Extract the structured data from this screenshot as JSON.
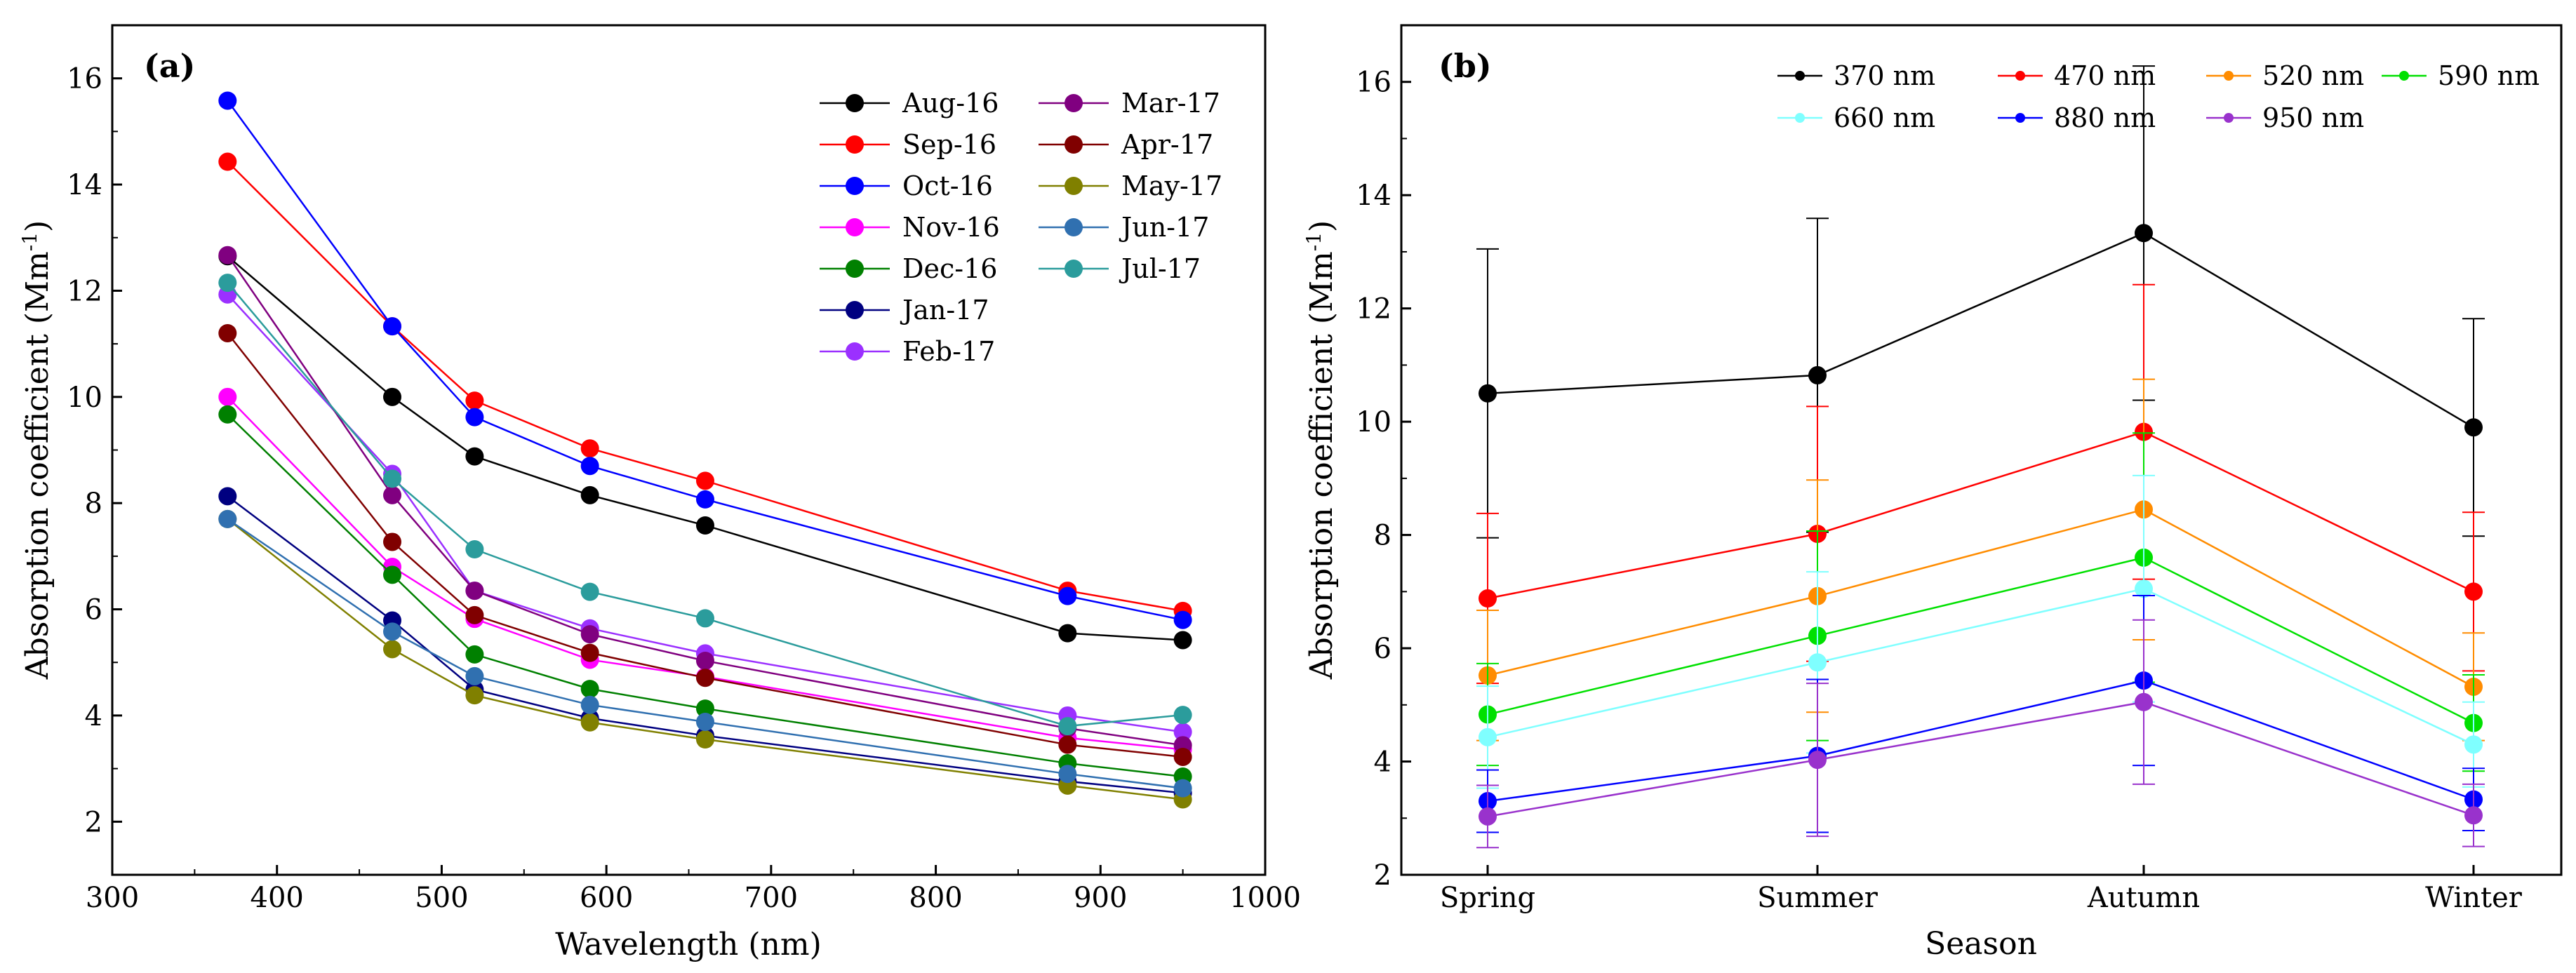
{
  "chart_data": [
    {
      "type": "line",
      "panel_label": "(a)",
      "xlabel": "Wavelength (nm)",
      "ylabel_main": "Absorption coefficient (Mm",
      "ylabel_sup": "-1",
      "ylabel_close": ")",
      "xlim": [
        300,
        1000
      ],
      "ylim": [
        1,
        17
      ],
      "x_ticks": [
        "300",
        "400",
        "500",
        "600",
        "700",
        "800",
        "900",
        "1000"
      ],
      "y_ticks": [
        "2",
        "4",
        "6",
        "8",
        "10",
        "12",
        "14",
        "16"
      ],
      "legend_position": "top-right",
      "x": [
        370,
        470,
        520,
        590,
        660,
        880,
        950
      ],
      "series": [
        {
          "name": "Aug-16",
          "color": "#000000",
          "values": [
            12.65,
            10.0,
            8.88,
            8.15,
            7.58,
            5.55,
            5.42
          ]
        },
        {
          "name": "Sep-16",
          "color": "#ff0000",
          "values": [
            14.43,
            11.33,
            9.93,
            9.03,
            8.42,
            6.35,
            5.97
          ]
        },
        {
          "name": "Oct-16",
          "color": "#0000ff",
          "values": [
            15.58,
            11.33,
            9.62,
            8.7,
            8.07,
            6.25,
            5.8
          ]
        },
        {
          "name": "Nov-16",
          "color": "#ff00ff",
          "values": [
            10.0,
            6.8,
            5.82,
            5.05,
            4.73,
            3.58,
            3.36
          ]
        },
        {
          "name": "Dec-16",
          "color": "#008000",
          "values": [
            9.67,
            6.65,
            5.15,
            4.5,
            4.13,
            3.1,
            2.85
          ]
        },
        {
          "name": "Jan-17",
          "color": "#000080",
          "values": [
            8.13,
            5.79,
            4.49,
            3.95,
            3.62,
            2.76,
            2.54
          ]
        },
        {
          "name": "Feb-17",
          "color": "#9b30ff",
          "values": [
            11.93,
            8.55,
            6.35,
            5.64,
            5.17,
            4.0,
            3.69
          ]
        },
        {
          "name": "Mar-17",
          "color": "#800080",
          "values": [
            12.67,
            8.15,
            6.35,
            5.53,
            5.03,
            3.76,
            3.44
          ]
        },
        {
          "name": "Apr-17",
          "color": "#800000",
          "values": [
            11.2,
            7.27,
            5.89,
            5.18,
            4.71,
            3.45,
            3.22
          ]
        },
        {
          "name": "May-17",
          "color": "#808000",
          "values": [
            7.7,
            5.25,
            4.38,
            3.87,
            3.55,
            2.68,
            2.42
          ]
        },
        {
          "name": "Jun-17",
          "color": "#3070b0",
          "values": [
            7.7,
            5.58,
            4.74,
            4.2,
            3.88,
            2.9,
            2.63
          ]
        },
        {
          "name": "Jul-17",
          "color": "#2b9c9c",
          "values": [
            12.15,
            8.46,
            7.13,
            6.33,
            5.83,
            3.8,
            4.01
          ]
        }
      ]
    },
    {
      "type": "line",
      "panel_label": "(b)",
      "xlabel": "Season",
      "ylabel_main": "Absorption coefficient (Mm",
      "ylabel_sup": "-1",
      "ylabel_close": ")",
      "ylim": [
        2,
        17
      ],
      "categories": [
        "Spring",
        "Summer",
        "Autumn",
        "Winter"
      ],
      "y_ticks": [
        "2",
        "4",
        "6",
        "8",
        "10",
        "12",
        "14",
        "16"
      ],
      "legend_position": "top",
      "error_bars": "symmetric, one standard deviation",
      "series": [
        {
          "name": "370 nm",
          "color": "#000000",
          "values": [
            10.5,
            10.82,
            13.33,
            9.9
          ],
          "errors": [
            2.55,
            2.77,
            2.95,
            1.92
          ]
        },
        {
          "name": "470 nm",
          "color": "#ff0000",
          "values": [
            6.88,
            8.02,
            9.82,
            7.0
          ],
          "errors": [
            1.5,
            2.25,
            2.6,
            1.4
          ]
        },
        {
          "name": "520 nm",
          "color": "#ff8c00",
          "values": [
            5.52,
            6.92,
            8.45,
            5.32
          ],
          "errors": [
            1.15,
            2.05,
            2.3,
            0.95
          ]
        },
        {
          "name": "590 nm",
          "color": "#00e000",
          "values": [
            4.83,
            6.22,
            7.6,
            4.68
          ],
          "errors": [
            0.9,
            1.85,
            2.2,
            0.85
          ]
        },
        {
          "name": "660 nm",
          "color": "#7fffff",
          "values": [
            4.43,
            5.75,
            7.05,
            4.3
          ],
          "errors": [
            0.9,
            1.6,
            2.0,
            0.75
          ]
        },
        {
          "name": "880 nm",
          "color": "#0000ff",
          "values": [
            3.3,
            4.1,
            5.43,
            3.33
          ],
          "errors": [
            0.55,
            1.35,
            1.5,
            0.55
          ]
        },
        {
          "name": "950 nm",
          "color": "#9932cc",
          "values": [
            3.03,
            4.03,
            5.05,
            3.05
          ],
          "errors": [
            0.55,
            1.35,
            1.45,
            0.55
          ]
        }
      ]
    }
  ]
}
